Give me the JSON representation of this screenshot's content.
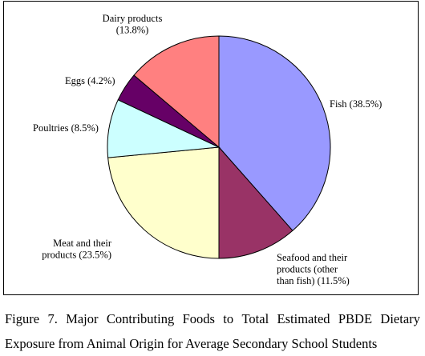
{
  "chart_data": {
    "type": "pie",
    "start": "12 o'clock, clockwise",
    "slices": [
      {
        "name": "Fish",
        "value": 38.5,
        "color": "#9999ff",
        "label_lines": [
          "Fish (38.5%)"
        ]
      },
      {
        "name": "Seafood and their products (other than fish)",
        "value": 11.5,
        "color": "#993366",
        "label_lines": [
          "Seafood and their",
          "products (other",
          "than fish) (11.5%)"
        ]
      },
      {
        "name": "Meat and their products",
        "value": 23.5,
        "color": "#ffffcc",
        "label_lines": [
          "Meat and their",
          "products (23.5%)"
        ]
      },
      {
        "name": "Poultries",
        "value": 8.5,
        "color": "#ccffff",
        "label_lines": [
          "Poultries (8.5%)"
        ]
      },
      {
        "name": "Eggs",
        "value": 4.2,
        "color": "#660066",
        "label_lines": [
          "Eggs (4.2%)"
        ]
      },
      {
        "name": "Dairy products",
        "value": 13.8,
        "color": "#ff8080",
        "label_lines": [
          "Dairy products",
          "(13.8%)"
        ]
      }
    ],
    "outline_color": "#000000"
  },
  "caption": {
    "line1_words": [
      "Figure",
      "7.",
      "Major",
      "Contributing",
      "Foods",
      "to",
      "Total",
      "Estimated",
      "PBDE",
      "Dietary"
    ],
    "line2": "Exposure from Animal Origin for Average Secondary School Students"
  }
}
